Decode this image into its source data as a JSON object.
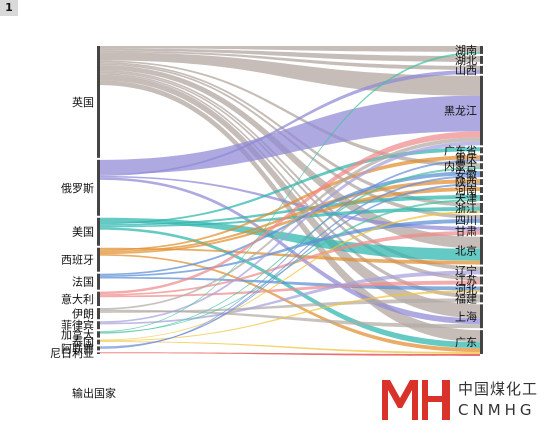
{
  "panel_index": "1",
  "legend_title": "输出国家",
  "logo": {
    "cn": "中国煤化工",
    "en": "CNMHG"
  },
  "colors": {
    "英国": "#b0a49c",
    "俄罗斯": "#8f89d6",
    "美国": "#2bb5ad",
    "西班牙": "#e08e2c",
    "法国": "#5a8fd6",
    "意大利": "#f08a8a",
    "伊朗": "#b3aba5",
    "菲律宾": "#a7a1dc",
    "加拿大": "#48c2a0",
    "泰国": "#f0c33c",
    "阿联酋": "#6b8fd6",
    "尼日利亚": "#e23b3b",
    "北京": "#2bb5ad",
    "黑龙江": "#8f89d6",
    "上海": "#b0a49c"
  },
  "chart_data": {
    "type": "sankey",
    "sources": [
      "英国",
      "俄罗斯",
      "美国",
      "西班牙",
      "法国",
      "意大利",
      "伊朗",
      "菲律宾",
      "加拿大",
      "泰国",
      "阿联酋",
      "尼日利亚"
    ],
    "source_values": [
      140,
      70,
      35,
      30,
      20,
      18,
      14,
      10,
      8,
      6,
      5,
      2
    ],
    "targets": [
      "湖南",
      "湖北",
      "山西",
      "黑龙江",
      "广东省",
      "重庆",
      "内蒙古",
      "安徽",
      "陕西",
      "河南",
      "天津",
      "浙江",
      "四川",
      "甘肃",
      "北京",
      "辽宁",
      "江苏",
      "河北",
      "福建",
      "上海",
      "广东"
    ],
    "target_values": [
      4,
      4,
      4,
      35,
      3,
      3,
      3,
      3,
      3,
      3,
      3,
      5,
      5,
      4,
      14,
      4,
      4,
      3,
      4,
      12,
      12
    ],
    "flows": [
      [
        "英国",
        "湖南",
        3
      ],
      [
        "英国",
        "湖北",
        3
      ],
      [
        "英国",
        "山西",
        2
      ],
      [
        "英国",
        "黑龙江",
        10
      ],
      [
        "英国",
        "内蒙古",
        2
      ],
      [
        "英国",
        "浙江",
        2
      ],
      [
        "英国",
        "四川",
        2
      ],
      [
        "英国",
        "北京",
        6
      ],
      [
        "英国",
        "辽宁",
        2
      ],
      [
        "英国",
        "江苏",
        2
      ],
      [
        "英国",
        "福建",
        2
      ],
      [
        "英国",
        "上海",
        7
      ],
      [
        "英国",
        "广东",
        6
      ],
      [
        "俄罗斯",
        "黑龙江",
        18
      ],
      [
        "俄罗斯",
        "山西",
        2
      ],
      [
        "俄罗斯",
        "甘肃",
        2
      ],
      [
        "俄罗斯",
        "上海",
        3
      ],
      [
        "美国",
        "北京",
        6
      ],
      [
        "美国",
        "广东省",
        2
      ],
      [
        "美国",
        "天津",
        2
      ],
      [
        "美国",
        "浙江",
        2
      ],
      [
        "美国",
        "广东",
        3
      ],
      [
        "西班牙",
        "北京",
        2
      ],
      [
        "西班牙",
        "重庆",
        2
      ],
      [
        "西班牙",
        "陕西",
        2
      ],
      [
        "西班牙",
        "河南",
        2
      ],
      [
        "西班牙",
        "广东",
        2
      ],
      [
        "法国",
        "安徽",
        2
      ],
      [
        "法国",
        "四川",
        2
      ],
      [
        "法国",
        "河北",
        2
      ],
      [
        "意大利",
        "黑龙江",
        3
      ],
      [
        "意大利",
        "甘肃",
        2
      ],
      [
        "意大利",
        "江苏",
        2
      ],
      [
        "伊朗",
        "黑龙江",
        2
      ],
      [
        "伊朗",
        "上海",
        2
      ],
      [
        "伊朗",
        "福建",
        2
      ],
      [
        "菲律宾",
        "黑龙江",
        2
      ],
      [
        "菲律宾",
        "辽宁",
        2
      ],
      [
        "加拿大",
        "湖南",
        1
      ],
      [
        "加拿大",
        "天津",
        1
      ],
      [
        "加拿大",
        "内蒙古",
        1
      ],
      [
        "泰国",
        "浙江",
        1
      ],
      [
        "泰国",
        "河北",
        1
      ],
      [
        "泰国",
        "广东",
        1
      ],
      [
        "阿联酋",
        "陕西",
        1
      ],
      [
        "阿联酋",
        "安徽",
        1
      ],
      [
        "阿联酋",
        "重庆",
        1
      ],
      [
        "尼日利亚",
        "广东",
        1
      ]
    ]
  }
}
